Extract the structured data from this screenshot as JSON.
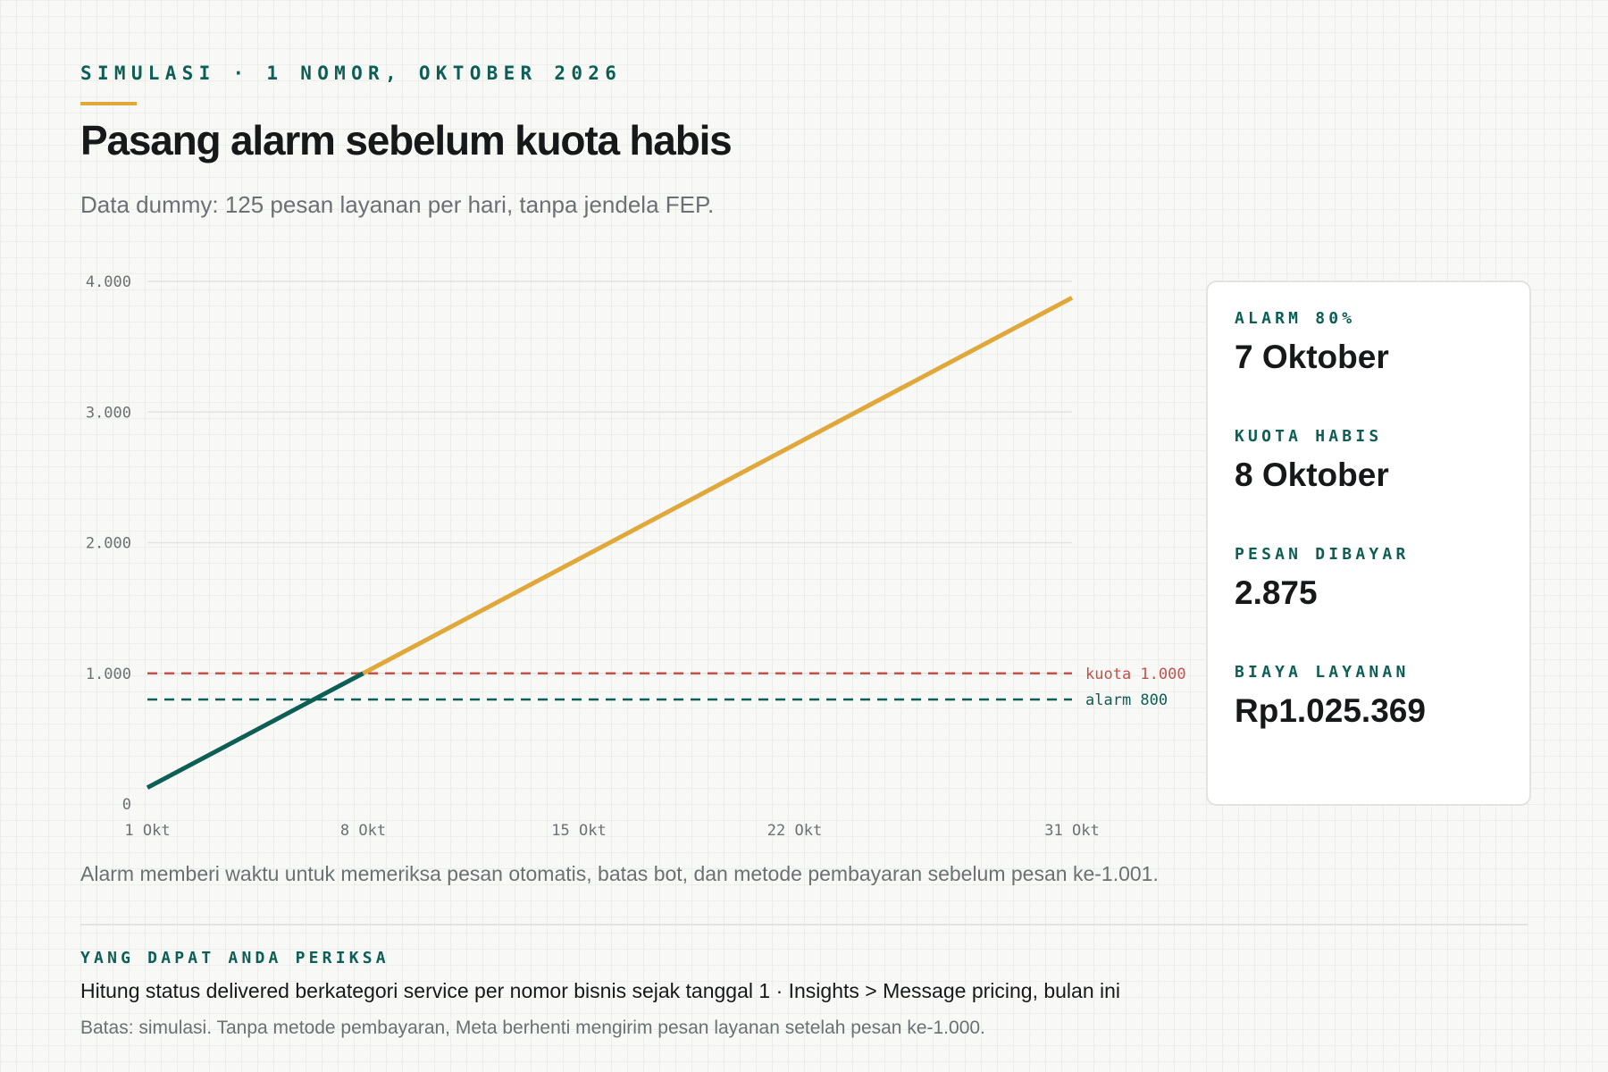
{
  "header": {
    "eyebrow": "SIMULASI · 1 NOMOR, OKTOBER 2026",
    "title": "Pasang alarm sebelum kuota habis",
    "subtitle": "Data dummy: 125 pesan layanan per hari, tanpa jendela FEP."
  },
  "chart_data": {
    "type": "line",
    "title": "",
    "xlabel": "",
    "ylabel": "",
    "x_range": [
      1,
      31
    ],
    "ylim": [
      0,
      4000
    ],
    "y_ticks": [
      0,
      1000,
      2000,
      3000,
      4000
    ],
    "y_tick_labels": [
      "0",
      "1.000",
      "2.000",
      "3.000",
      "4.000"
    ],
    "x_ticks": [
      1,
      8,
      15,
      22,
      31
    ],
    "x_tick_labels": [
      "1 Okt",
      "8 Okt",
      "15 Okt",
      "22 Okt",
      "31 Okt"
    ],
    "grid": true,
    "series": [
      {
        "x": [
          1,
          8
        ],
        "y": [
          125,
          1000
        ],
        "color": "#0d5e54"
      },
      {
        "x": [
          8,
          31
        ],
        "y": [
          1000,
          3875
        ],
        "color": "#e0a83a"
      }
    ],
    "reference_lines": [
      {
        "y": 1000,
        "label": "kuota 1.000",
        "color": "#c4514a"
      },
      {
        "y": 800,
        "label": "alarm 800",
        "color": "#0d5e54"
      }
    ]
  },
  "stats": [
    {
      "label": "ALARM 80%",
      "value": "7 Oktober"
    },
    {
      "label": "KUOTA HABIS",
      "value": "8 Oktober"
    },
    {
      "label": "PESAN DIBAYAR",
      "value": "2.875"
    },
    {
      "label": "BIAYA LAYANAN",
      "value": "Rp1.025.369"
    }
  ],
  "caption": "Alarm memberi waktu untuk memeriksa pesan otomatis, batas bot, dan metode pembayaran sebelum pesan ke-1.001.",
  "check_section": {
    "label": "YANG DAPAT ANDA PERIKSA",
    "text": "Hitung status delivered berkategori service per nomor bisnis sejak tanggal 1 · Insights > Message pricing, bulan ini"
  },
  "footnote": "Batas: simulasi. Tanpa metode pembayaran, Meta berhenti mengirim pesan layanan setelah pesan ke-1.000.",
  "colors": {
    "teal": "#0d5e54",
    "amber": "#e0a83a",
    "red": "#c4514a",
    "text": "#16181a",
    "muted": "#6b7073"
  }
}
